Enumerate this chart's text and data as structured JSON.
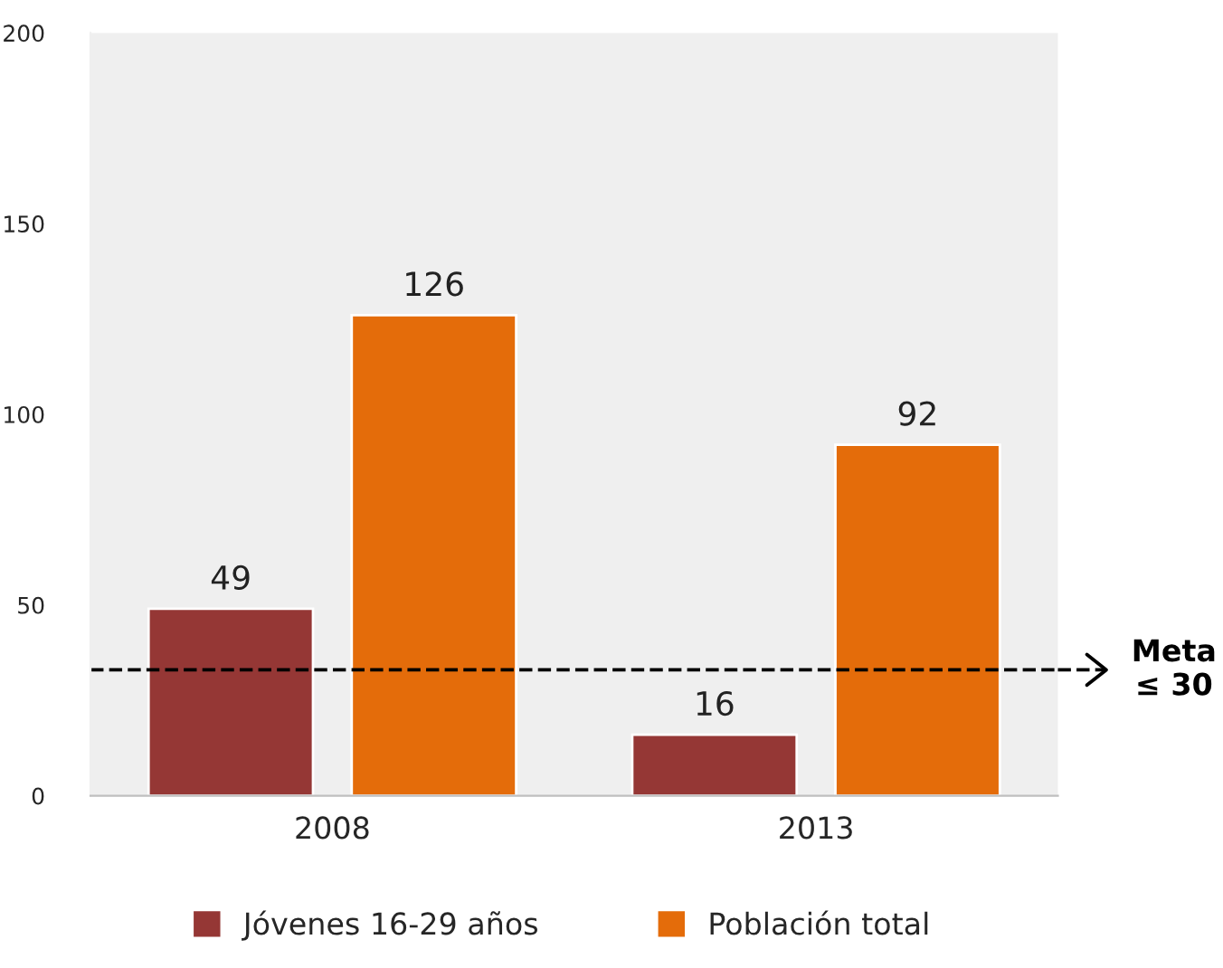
{
  "chart_data": {
    "type": "bar",
    "categories": [
      "2008",
      "2013"
    ],
    "series": [
      {
        "name": "Jóvenes 16-29 años",
        "color": "#953735",
        "values": [
          49,
          16
        ]
      },
      {
        "name": "Población total",
        "color": "#e46c0a",
        "values": [
          126,
          92
        ]
      }
    ],
    "ylim": [
      0,
      200
    ],
    "yticks": [
      0,
      50,
      100,
      150,
      200
    ],
    "grid": false,
    "legend": "bottom",
    "data_labels": true,
    "ref_lines": [
      {
        "axis": "y",
        "value": 33,
        "label": "Meta\n≤ 30",
        "color": "#000000",
        "line_style": "dashed"
      }
    ]
  }
}
